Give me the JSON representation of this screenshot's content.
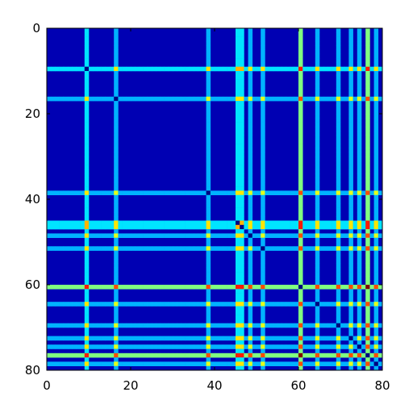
{
  "chart_data": {
    "type": "heatmap",
    "title": "",
    "xlabel": "",
    "ylabel": "",
    "size": 80,
    "xlim": [
      0,
      80
    ],
    "ylim": [
      80,
      0
    ],
    "x_ticks": [
      "0",
      "20",
      "40",
      "60",
      "80"
    ],
    "y_ticks": [
      "0",
      "20",
      "40",
      "60",
      "80"
    ],
    "x_tick_values": [
      0,
      20,
      40,
      60,
      80
    ],
    "y_tick_values": [
      0,
      20,
      40,
      60,
      80
    ],
    "colormap": "jet",
    "background_value": 0.05,
    "highlighted_indices": [
      {
        "index": 9,
        "value": 0.35
      },
      {
        "index": 16,
        "value": 0.3
      },
      {
        "index": 38,
        "value": 0.3
      },
      {
        "index": 45,
        "value": 0.35
      },
      {
        "index": 46,
        "value": 0.35
      },
      {
        "index": 48,
        "value": 0.3
      },
      {
        "index": 51,
        "value": 0.3
      },
      {
        "index": 60,
        "value": 0.5
      },
      {
        "index": 64,
        "value": 0.3
      },
      {
        "index": 69,
        "value": 0.3
      },
      {
        "index": 72,
        "value": 0.3
      },
      {
        "index": 74,
        "value": 0.3
      },
      {
        "index": 76,
        "value": 0.5
      },
      {
        "index": 78,
        "value": 0.3
      }
    ],
    "diagonal_value": 0.0,
    "grid": false,
    "legend": "none"
  }
}
